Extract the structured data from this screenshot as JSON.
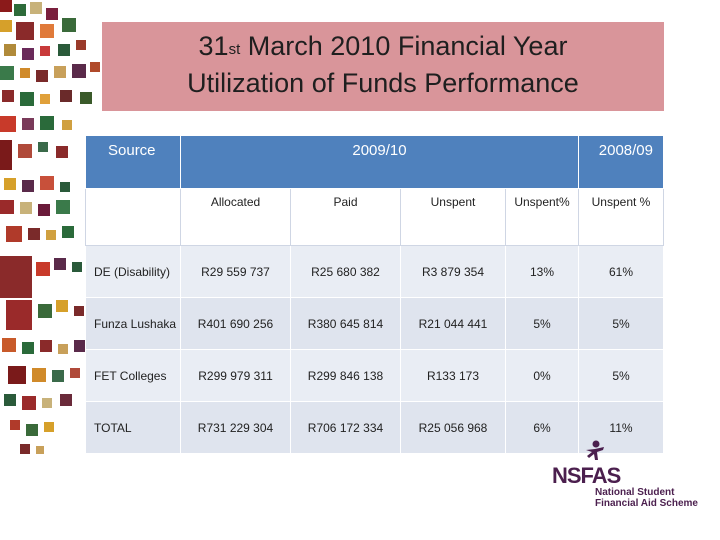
{
  "title": {
    "line1_prefix": "31",
    "line1_sup": "st",
    "line1_rest": " March 2010 Financial Year",
    "line2": "Utilization of Funds Performance"
  },
  "table": {
    "header": {
      "source": "Source",
      "year_current": "2009/10",
      "year_prior": "2008/09"
    },
    "subheaders": [
      "Allocated",
      "Paid",
      "Unspent",
      "Unspent%",
      "Unspent %"
    ],
    "rows": [
      {
        "label": "DE (Disability)",
        "allocated": "R29 559 737",
        "paid": "R25 680 382",
        "unspent": "R3 879 354",
        "unspent_pct": "13%",
        "prior_unspent_pct": "61%"
      },
      {
        "label": "Funza Lushaka",
        "allocated": "R401 690 256",
        "paid": "R380 645 814",
        "unspent": "R21 044 441",
        "unspent_pct": "5%",
        "prior_unspent_pct": "5%"
      },
      {
        "label": "FET Colleges",
        "allocated": "R299 979 311",
        "paid": "R299 846 138",
        "unspent": "R133 173",
        "unspent_pct": "0%",
        "prior_unspent_pct": "5%"
      },
      {
        "label": "TOTAL",
        "allocated": "R731 229 304",
        "paid": "R706 172 334",
        "unspent": "R25 056 968",
        "unspent_pct": "6%",
        "prior_unspent_pct": "11%"
      }
    ]
  },
  "logo": {
    "name": "NSFAS",
    "sub_line1": "National Student",
    "sub_line2": "Financial Aid Scheme"
  },
  "colors": {
    "title_bg": "#d9959a",
    "header_blue": "#4f81bd",
    "logo_purple": "#4b1f4e"
  }
}
